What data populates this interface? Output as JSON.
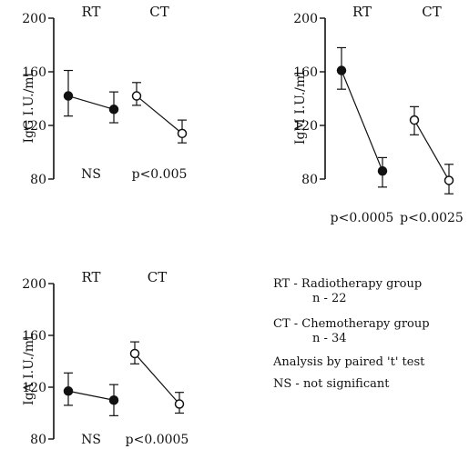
{
  "chart_data": [
    {
      "type": "line",
      "ylabel": "IgG I.U./ml.",
      "yticks": [
        80,
        120,
        160,
        200
      ],
      "ylim": [
        80,
        200
      ],
      "groups": [
        {
          "label": "RT",
          "marker": "filled",
          "pre": {
            "mean": 142,
            "low": 127,
            "high": 161
          },
          "post": {
            "mean": 132,
            "low": 122,
            "high": 145
          },
          "pvalue": "NS"
        },
        {
          "label": "CT",
          "marker": "open",
          "pre": {
            "mean": 142,
            "low": 135,
            "high": 152
          },
          "post": {
            "mean": 114,
            "low": 107,
            "high": 124
          },
          "pvalue": "p<0.005"
        }
      ]
    },
    {
      "type": "line",
      "ylabel": "IgM I.U./ml.",
      "yticks": [
        80,
        120,
        160,
        200
      ],
      "ylim": [
        80,
        200
      ],
      "groups": [
        {
          "label": "RT",
          "marker": "filled",
          "pre": {
            "mean": 161,
            "low": 147,
            "high": 178
          },
          "post": {
            "mean": 86,
            "low": 74,
            "high": 96
          },
          "pvalue": "p<0.0005"
        },
        {
          "label": "CT",
          "marker": "open",
          "pre": {
            "mean": 124,
            "low": 113,
            "high": 134
          },
          "post": {
            "mean": 79,
            "low": 69,
            "high": 91
          },
          "pvalue": "p<0.0025"
        }
      ]
    },
    {
      "type": "line",
      "ylabel": "IgA I.U./ml.",
      "yticks": [
        80,
        120,
        160,
        200
      ],
      "ylim": [
        80,
        200
      ],
      "groups": [
        {
          "label": "RT",
          "marker": "filled",
          "pre": {
            "mean": 117,
            "low": 106,
            "high": 131
          },
          "post": {
            "mean": 110,
            "low": 98,
            "high": 122
          },
          "pvalue": "NS"
        },
        {
          "label": "CT",
          "marker": "open",
          "pre": {
            "mean": 146,
            "low": 138,
            "high": 155
          },
          "post": {
            "mean": 107,
            "low": 100,
            "high": 116
          },
          "pvalue": "p<0.0005"
        }
      ]
    }
  ],
  "legend": [
    "RT - Radiotherapy group",
    "n - 22",
    "CT - Chemotherapy group",
    "n - 34",
    "Analysis by paired 't' test",
    "NS - not significant"
  ]
}
